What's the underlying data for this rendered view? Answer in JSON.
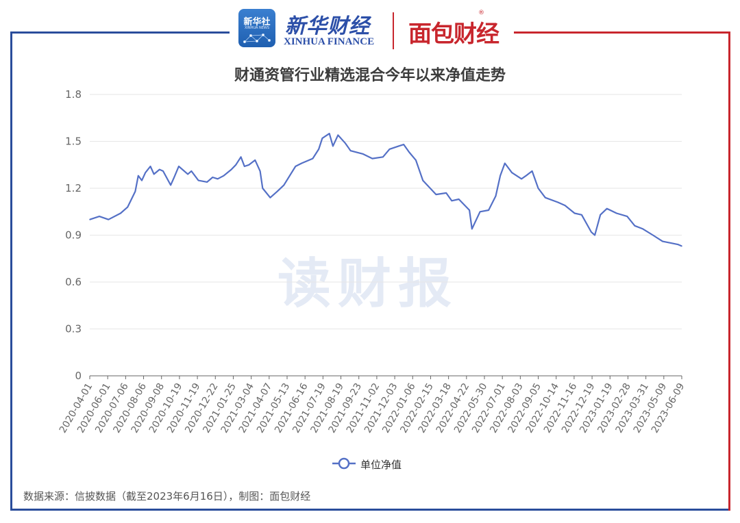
{
  "header": {
    "xinhua_badge_cn": "新华社",
    "xinhua_badge_en": "XINHUA NEWS",
    "xinhua_finance_cn": "新华财经",
    "xinhua_finance_en": "XINHUA FINANCE",
    "partner_logo": "面包财经",
    "partner_reg_mark": "®"
  },
  "watermark": "读财报",
  "source_note": "数据来源：信披数据（截至2023年6月16日），制图：面包财经",
  "colors": {
    "line": "#5470c6",
    "grid": "#e6e6e6",
    "axis": "#666666",
    "frame_blue": "#2a4d9b",
    "frame_red": "#c8262d"
  },
  "chart_data": {
    "type": "line",
    "title": "财通资管行业精选混合今年以来净值走势",
    "xlabel": "",
    "ylabel": "",
    "ylim": [
      0,
      1.8
    ],
    "yticks": [
      "0",
      "0.3",
      "0.6",
      "0.9",
      "1.2",
      "1.5",
      "1.8"
    ],
    "grid": true,
    "legend_position": "bottom-center",
    "x_tick_labels": [
      "2020-04-01",
      "2020-06-01",
      "2020-07-06",
      "2020-08-06",
      "2020-09-08",
      "2020-10-19",
      "2020-11-19",
      "2020-12-22",
      "2021-01-25",
      "2021-03-04",
      "2021-04-07",
      "2021-05-13",
      "2021-06-16",
      "2021-07-19",
      "2021-08-19",
      "2021-09-23",
      "2021-11-02",
      "2021-12-03",
      "2022-01-06",
      "2022-02-15",
      "2022-03-18",
      "2022-04-22",
      "2022-05-30",
      "2022-07-01",
      "2022-08-03",
      "2022-09-05",
      "2022-10-14",
      "2022-11-16",
      "2022-12-19",
      "2023-01-19",
      "2023-02-28",
      "2023-03-31",
      "2023-05-09",
      "2023-06-09"
    ],
    "series": [
      {
        "name": "单位净值",
        "x": [
          "2020-04-01",
          "2020-04-20",
          "2020-05-08",
          "2020-06-01",
          "2020-06-15",
          "2020-06-30",
          "2020-07-06",
          "2020-07-13",
          "2020-07-20",
          "2020-07-30",
          "2020-08-06",
          "2020-08-17",
          "2020-08-24",
          "2020-09-08",
          "2020-09-15",
          "2020-09-24",
          "2020-10-12",
          "2020-10-19",
          "2020-11-02",
          "2020-11-19",
          "2020-11-30",
          "2020-12-10",
          "2020-12-22",
          "2021-01-06",
          "2021-01-15",
          "2021-01-25",
          "2021-02-01",
          "2021-02-10",
          "2021-02-22",
          "2021-03-04",
          "2021-03-09",
          "2021-03-24",
          "2021-04-07",
          "2021-04-20",
          "2021-05-13",
          "2021-05-25",
          "2021-06-16",
          "2021-06-28",
          "2021-07-05",
          "2021-07-19",
          "2021-07-26",
          "2021-08-05",
          "2021-08-19",
          "2021-08-30",
          "2021-09-23",
          "2021-10-12",
          "2021-11-02",
          "2021-11-15",
          "2021-12-03",
          "2021-12-13",
          "2021-12-24",
          "2022-01-06",
          "2022-01-20",
          "2022-02-15",
          "2022-03-07",
          "2022-03-18",
          "2022-04-01",
          "2022-04-22",
          "2022-04-27",
          "2022-05-13",
          "2022-05-30",
          "2022-06-13",
          "2022-06-22",
          "2022-07-01",
          "2022-07-15",
          "2022-08-03",
          "2022-08-12",
          "2022-08-24",
          "2022-09-05",
          "2022-09-19",
          "2022-10-14",
          "2022-10-28",
          "2022-11-16",
          "2022-11-30",
          "2022-12-19",
          "2022-12-26",
          "2023-01-06",
          "2023-01-19",
          "2023-02-07",
          "2023-02-28",
          "2023-03-15",
          "2023-03-31",
          "2023-04-20",
          "2023-05-09",
          "2023-05-25",
          "2023-06-09",
          "2023-06-16"
        ],
        "values": [
          1.0,
          1.02,
          1.0,
          1.04,
          1.08,
          1.18,
          1.28,
          1.25,
          1.3,
          1.34,
          1.29,
          1.32,
          1.31,
          1.22,
          1.27,
          1.34,
          1.29,
          1.31,
          1.25,
          1.24,
          1.27,
          1.26,
          1.28,
          1.32,
          1.35,
          1.4,
          1.34,
          1.35,
          1.38,
          1.31,
          1.2,
          1.14,
          1.18,
          1.22,
          1.34,
          1.36,
          1.39,
          1.45,
          1.52,
          1.55,
          1.47,
          1.54,
          1.49,
          1.44,
          1.42,
          1.39,
          1.4,
          1.45,
          1.47,
          1.48,
          1.43,
          1.38,
          1.25,
          1.16,
          1.17,
          1.12,
          1.13,
          1.06,
          0.94,
          1.05,
          1.06,
          1.15,
          1.28,
          1.36,
          1.3,
          1.26,
          1.28,
          1.31,
          1.2,
          1.14,
          1.11,
          1.09,
          1.04,
          1.03,
          0.92,
          0.9,
          1.03,
          1.07,
          1.04,
          1.02,
          0.96,
          0.94,
          0.9,
          0.86,
          0.85,
          0.84,
          0.83
        ]
      }
    ]
  }
}
